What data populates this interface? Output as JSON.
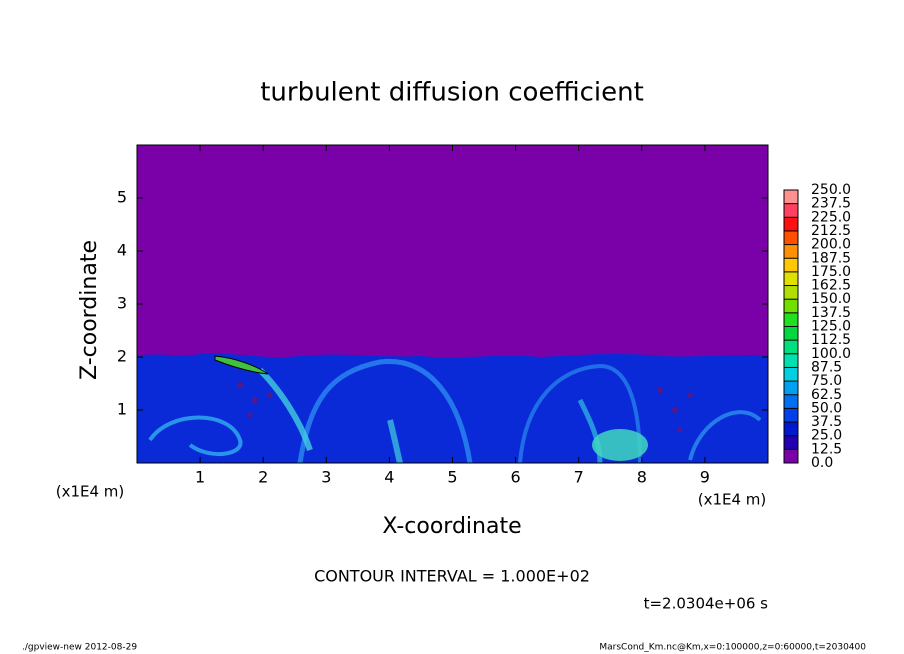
{
  "chart_data": {
    "type": "contour",
    "title": "turbulent diffusion coefficient",
    "x_label": "X-coordinate",
    "y_label": "Z-coordinate",
    "x_unit": "(x1E4 m)",
    "y_unit": "(x1E4 m)",
    "xlim": [
      0,
      10
    ],
    "ylim": [
      0,
      6
    ],
    "xticks": [
      1,
      2,
      3,
      4,
      5,
      6,
      7,
      8,
      9
    ],
    "yticks": [
      1,
      2,
      3,
      4,
      5
    ],
    "contour_note": "CONTOUR INTERVAL = 1.000E+02",
    "time_label": "t=2.0304e+06 s",
    "footer_left": "./gpview-new  2012-08-29",
    "footer_right": "MarsCond_Km.nc@Km,x=0:100000,z=0:60000,t=2030400",
    "colorbar": {
      "lim": [
        0,
        250
      ],
      "ticks": [
        {
          "value": 0,
          "label": "0.0"
        },
        {
          "value": 12.5,
          "label": "12.5"
        },
        {
          "value": 25,
          "label": "25.0"
        },
        {
          "value": 37.5,
          "label": "37.5"
        },
        {
          "value": 50,
          "label": "50.0"
        },
        {
          "value": 62.5,
          "label": "62.5"
        },
        {
          "value": 75,
          "label": "75.0"
        },
        {
          "value": 87.5,
          "label": "87.5"
        },
        {
          "value": 100,
          "label": "100.0"
        },
        {
          "value": 112.5,
          "label": "112.5"
        },
        {
          "value": 125,
          "label": "125.0"
        },
        {
          "value": 137.5,
          "label": "137.5"
        },
        {
          "value": 150,
          "label": "150.0"
        },
        {
          "value": 162.5,
          "label": "162.5"
        },
        {
          "value": 175,
          "label": "175.0"
        },
        {
          "value": 187.5,
          "label": "187.5"
        },
        {
          "value": 200,
          "label": "200.0"
        },
        {
          "value": 212.5,
          "label": "212.5"
        },
        {
          "value": 225,
          "label": "225.0"
        },
        {
          "value": 237.5,
          "label": "237.5"
        },
        {
          "value": 250,
          "label": "250.0"
        }
      ],
      "colors": [
        "#7a00a8",
        "#2000b0",
        "#0018d0",
        "#0040e8",
        "#0070f0",
        "#00a0f0",
        "#00d0e0",
        "#00e0b0",
        "#00e080",
        "#00d840",
        "#20e020",
        "#70e000",
        "#b0e000",
        "#e0e000",
        "#ffc800",
        "#ff9000",
        "#ff5000",
        "#ff1010",
        "#ff4060",
        "#ff9090"
      ]
    }
  }
}
